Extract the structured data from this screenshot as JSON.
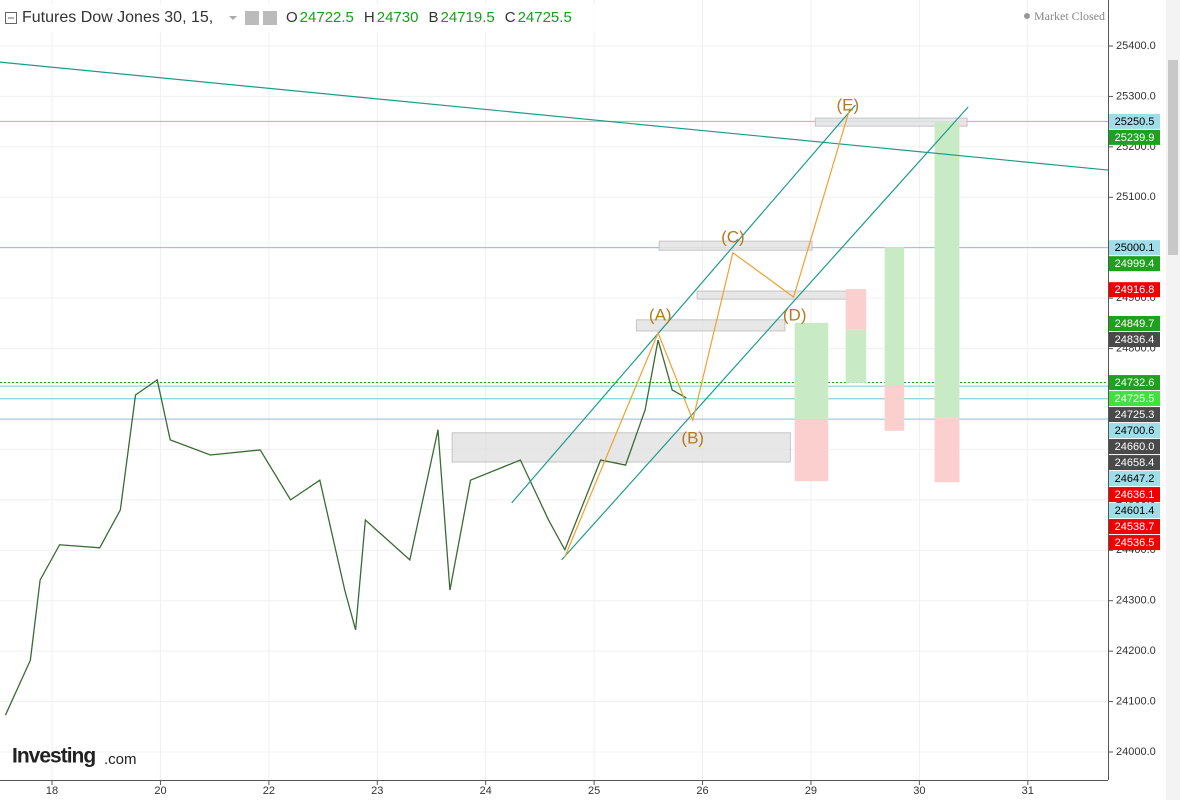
{
  "header": {
    "symbol": "Futures Dow Jones 30, 15,",
    "ohlc": [
      {
        "label": "O",
        "value": 24722.5
      },
      {
        "label": "H",
        "value": 24730.0
      },
      {
        "label": "B",
        "value": 24719.5
      },
      {
        "label": "C",
        "value": 24725.5
      }
    ],
    "status": "Market Closed"
  },
  "brand": {
    "name": "Investing",
    "suffix": ".com"
  },
  "chart_data": {
    "type": "line",
    "color": "#3a6b35",
    "x": [
      -0.43,
      -0.2,
      -0.11,
      0.07,
      0.44,
      0.63,
      0.77,
      0.97,
      1.09,
      1.46,
      1.92,
      2.2,
      2.47,
      2.7,
      2.8,
      2.89,
      3.3,
      3.56,
      3.67,
      3.86,
      4.32,
      4.58,
      4.73,
      5.06,
      5.29,
      5.47,
      5.59,
      5.72,
      5.85
    ],
    "values": [
      24073,
      24182,
      24341,
      24411,
      24405,
      24480,
      24708,
      24738,
      24619,
      24589,
      24599,
      24500,
      24539,
      24321,
      24242,
      24460,
      24381,
      24639,
      24321,
      24539,
      24579,
      24460,
      24401,
      24579,
      24569,
      24678,
      24817,
      24718,
      24702
    ],
    "xlim": [
      -0.48,
      9.74
    ],
    "ylim": [
      23944.5,
      25491.2
    ],
    "grid": true,
    "xticks": [
      {
        "value": 0,
        "label": "18"
      },
      {
        "value": 1,
        "label": "20"
      },
      {
        "value": 2,
        "label": "22"
      },
      {
        "value": 3,
        "label": "23"
      },
      {
        "value": 4,
        "label": "24"
      },
      {
        "value": 5,
        "label": "25"
      },
      {
        "value": 6,
        "label": "26"
      },
      {
        "value": 7,
        "label": "29"
      },
      {
        "value": 8,
        "label": "30"
      },
      {
        "value": 9,
        "label": "31"
      }
    ],
    "yticks": [
      {
        "value": 24000,
        "label": "24000.0"
      },
      {
        "value": 24100,
        "label": "24100.0"
      },
      {
        "value": 24200,
        "label": "24200.0"
      },
      {
        "value": 24300,
        "label": "24300.0"
      },
      {
        "value": 24400,
        "label": "24400.0"
      },
      {
        "value": 24500,
        "label": "24500.0"
      },
      {
        "value": 24600,
        "label": "24600.0"
      },
      {
        "value": 24700,
        "label": "24700.0"
      },
      {
        "value": 24800,
        "label": "24800.0"
      },
      {
        "value": 24900,
        "label": "24900.0"
      },
      {
        "value": 25000,
        "label": "25000.0"
      },
      {
        "value": 25100,
        "label": "25100.0"
      },
      {
        "value": 25200,
        "label": "25200.0"
      },
      {
        "value": 25300,
        "label": "25300.0"
      },
      {
        "value": 25400,
        "label": "25400.0"
      }
    ],
    "boxes": [
      {
        "x": [
          3.69,
          6.81
        ],
        "y": [
          24575,
          24633
        ],
        "color": "#e3e3e3"
      },
      {
        "x": [
          5.39,
          6.76
        ],
        "y": [
          24835,
          24857
        ],
        "color": "#e3e3e3"
      },
      {
        "x": [
          5.95,
          7.34
        ],
        "y": [
          24898,
          24914
        ],
        "color": "#e3e3e3"
      },
      {
        "x": [
          5.6,
          7.01
        ],
        "y": [
          24995,
          25013
        ],
        "color": "#e3e3e3"
      },
      {
        "x": [
          7.04,
          8.44
        ],
        "y": [
          25241,
          25257
        ],
        "color": "#e3e3e3"
      },
      {
        "x": [
          6.85,
          7.16
        ],
        "y": [
          24660,
          24851
        ],
        "color": "#c8ebc6"
      },
      {
        "x": [
          6.85,
          7.16
        ],
        "y": [
          24537,
          24660
        ],
        "color": "#fccfcf"
      },
      {
        "x": [
          7.32,
          7.51
        ],
        "y": [
          24837,
          24918
        ],
        "color": "#fccfcf"
      },
      {
        "x": [
          7.32,
          7.51
        ],
        "y": [
          24732,
          24837
        ],
        "color": "#c8ebc6"
      },
      {
        "x": [
          7.68,
          7.86
        ],
        "y": [
          24726,
          25001
        ],
        "color": "#c8ebc6"
      },
      {
        "x": [
          7.68,
          7.86
        ],
        "y": [
          24637,
          24726
        ],
        "color": "#fccfcf"
      },
      {
        "x": [
          8.14,
          8.37
        ],
        "y": [
          24662,
          25249
        ],
        "color": "#c8ebc6"
      },
      {
        "x": [
          8.14,
          8.37
        ],
        "y": [
          24535,
          24662
        ],
        "color": "#fccfcf"
      }
    ],
    "trendlines": [
      {
        "x": [
          -0.48,
          9.74
        ],
        "y": [
          25368,
          25154
        ],
        "color": "#1e9c8a"
      },
      {
        "x": [
          4.24,
          7.41
        ],
        "y": [
          24494,
          25283
        ],
        "color": "#1e9c8a"
      },
      {
        "x": [
          4.7,
          8.45
        ],
        "y": [
          24381,
          25279
        ],
        "color": "#1e9c8a"
      },
      {
        "x": [
          4.73,
          5.59,
          5.91,
          6.28,
          6.84,
          7.36
        ],
        "y": [
          24387,
          24831,
          24658,
          24990,
          24902,
          25277
        ],
        "color": "#f0a030"
      }
    ],
    "waves": [
      {
        "label": "(A)",
        "x": 5.61,
        "y": 24865
      },
      {
        "label": "(B)",
        "x": 5.91,
        "y": 24621
      },
      {
        "label": "(C)",
        "x": 6.28,
        "y": 25019
      },
      {
        "label": "(D)",
        "x": 6.85,
        "y": 24865
      },
      {
        "label": "(E)",
        "x": 7.34,
        "y": 25281
      }
    ],
    "badges": [
      {
        "value": 25250.5,
        "label": "25250.5",
        "color": "#9fdde8",
        "text_color": "#000",
        "line": "solid"
      },
      {
        "value": 25239.9,
        "label": "25239.9",
        "color": "#1ea21e",
        "text_color": "#fff"
      },
      {
        "value": 25000.1,
        "label": "25000.1",
        "color": "#9fdde8",
        "text_color": "#000",
        "line": "solid"
      },
      {
        "value": 24999.4,
        "label": "24999.4",
        "color": "#1ea21e",
        "text_color": "#fff"
      },
      {
        "value": 24916.8,
        "label": "24916.8",
        "color": "#f00000",
        "text_color": "#fff"
      },
      {
        "value": 24849.7,
        "label": "24849.7",
        "color": "#1ea21e",
        "text_color": "#fff"
      },
      {
        "value": 24836.4,
        "label": "24836.4",
        "color": "#4a4a4a",
        "text_color": "#fff"
      },
      {
        "value": 24732.6,
        "label": "24732.6",
        "color": "#1ea21e",
        "text_color": "#fff",
        "line": "dotted"
      },
      {
        "value": 24725.5,
        "label": "24725.5",
        "color": "#3fe03f",
        "text_color": "#fff",
        "line": "solid"
      },
      {
        "value": 24725.3,
        "label": "24725.3",
        "color": "#4a4a4a",
        "text_color": "#fff"
      },
      {
        "value": 24700.6,
        "label": "24700.6",
        "color": "#9fdde8",
        "text_color": "#000",
        "line": "solid"
      },
      {
        "value": 24660.0,
        "label": "24660.0",
        "color": "#4a4a4a",
        "text_color": "#fff",
        "line": "solid"
      },
      {
        "value": 24658.4,
        "label": "24658.4",
        "color": "#4a4a4a",
        "text_color": "#fff"
      },
      {
        "value": 24647.2,
        "label": "24647.2",
        "color": "#9fdde8",
        "text_color": "#000"
      },
      {
        "value": 24636.1,
        "label": "24636.1",
        "color": "#f00000",
        "text_color": "#fff"
      },
      {
        "value": 24601.4,
        "label": "24601.4",
        "color": "#9fdde8",
        "text_color": "#000"
      },
      {
        "value": 24538.7,
        "label": "24538.7",
        "color": "#f00000",
        "text_color": "#fff"
      },
      {
        "value": 24536.5,
        "label": "24536.5",
        "color": "#f00000",
        "text_color": "#fff"
      }
    ]
  }
}
